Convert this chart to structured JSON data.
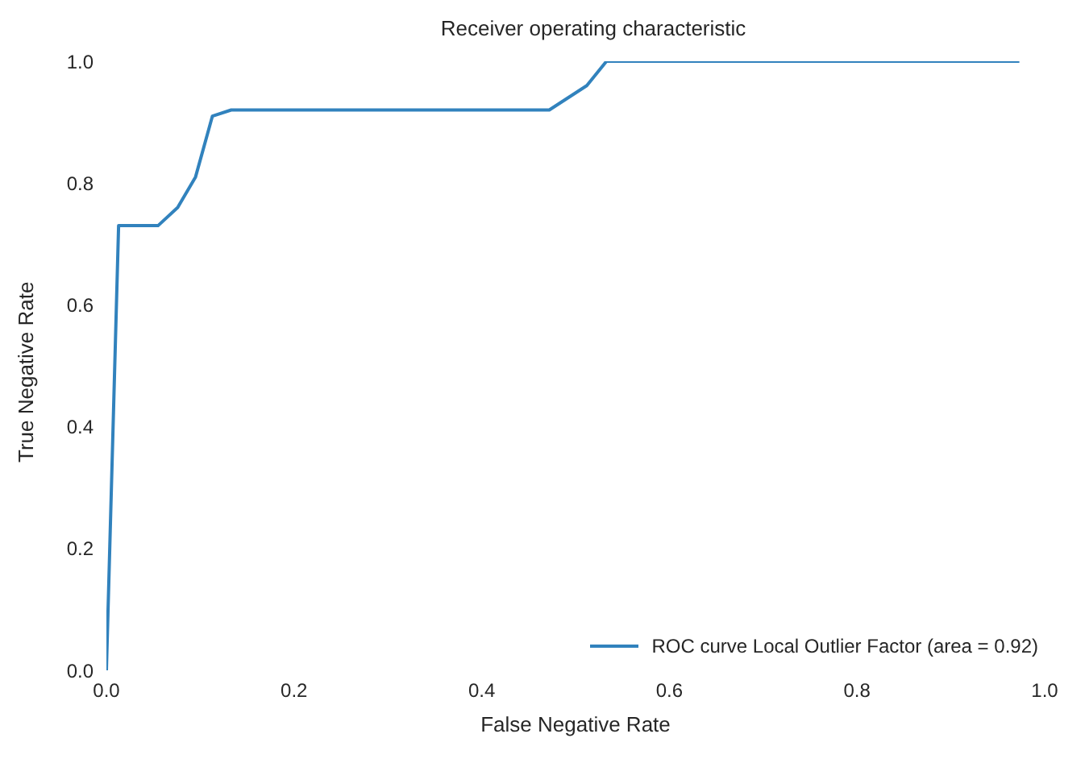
{
  "chart_data": {
    "type": "line",
    "title": "Receiver operating characteristic",
    "xlabel": "False Negative Rate",
    "ylabel": "True Negative Rate",
    "x": [
      0,
      0.013,
      0.055,
      0.076,
      0.095,
      0.113,
      0.133,
      0.472,
      0.512,
      0.533,
      0.973
    ],
    "series": [
      {
        "name": "ROC curve Local Outlier Factor (area = 0.92)",
        "color": "#3182bd",
        "values": [
          0,
          0.73,
          0.73,
          0.76,
          0.81,
          0.91,
          0.92,
          0.92,
          0.96,
          1.0,
          1.0
        ]
      }
    ],
    "xlim": [
      0,
      1.0
    ],
    "ylim": [
      0,
      1.0
    ],
    "xticks": [
      {
        "value": 0,
        "label": "0.0"
      },
      0.2,
      0.4,
      0.6,
      0.8,
      {
        "value": 1,
        "label": "1.0"
      }
    ],
    "yticks": [
      {
        "value": 0,
        "label": "0.0"
      },
      0.2,
      0.4,
      0.6,
      0.8,
      {
        "value": 1,
        "label": "1.0"
      }
    ],
    "grid": false,
    "legend": "bottom right",
    "marker": "none",
    "line_style": "solid"
  }
}
